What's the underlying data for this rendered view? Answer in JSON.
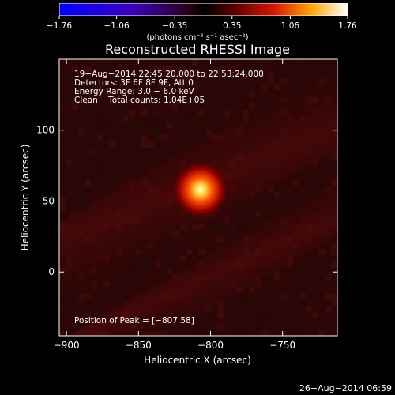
{
  "chart_data": {
    "type": "heatmap",
    "title": "Reconstructed RHESSI Image",
    "xlabel": "Heliocentric X (arcsec)",
    "ylabel": "Heliocentric Y (arcsec)",
    "xlim": [
      -905,
      -712
    ],
    "ylim": [
      -45,
      150
    ],
    "xticks": [
      -900,
      -850,
      -800,
      -750
    ],
    "xtick_labels": [
      "−900",
      "−850",
      "−800",
      "−750"
    ],
    "yticks": [
      0,
      50,
      100
    ],
    "ytick_labels": [
      "0",
      "50",
      "100"
    ],
    "colorbar": {
      "min": -1.76,
      "max": 1.76,
      "ticks": [
        -1.76,
        -1.06,
        -0.35,
        0.35,
        1.06,
        1.76
      ],
      "tick_labels": [
        "−1.76",
        "−1.06",
        "−0.35",
        "0.35",
        "1.06",
        "1.76"
      ],
      "unit_label": "(photons cm⁻² s⁻¹ asec⁻²)"
    },
    "peak": {
      "x": -807,
      "y": 58,
      "value": 1.76
    },
    "annotations": [
      "19−Aug−2014 22:45:20.000 to 22:53:24.000",
      "Detectors: 3F 6F 8F 9F, Att 0",
      "Energy Range: 3.0 − 6.0 keV",
      "Clean    Total counts: 1.04E+05"
    ],
    "peak_label": "Position of Peak = [−807,58]"
  },
  "footer": {
    "timestamp": "26−Aug−2014 06:59"
  },
  "colors": {
    "background": "#000000",
    "foreground": "#ffffff"
  }
}
